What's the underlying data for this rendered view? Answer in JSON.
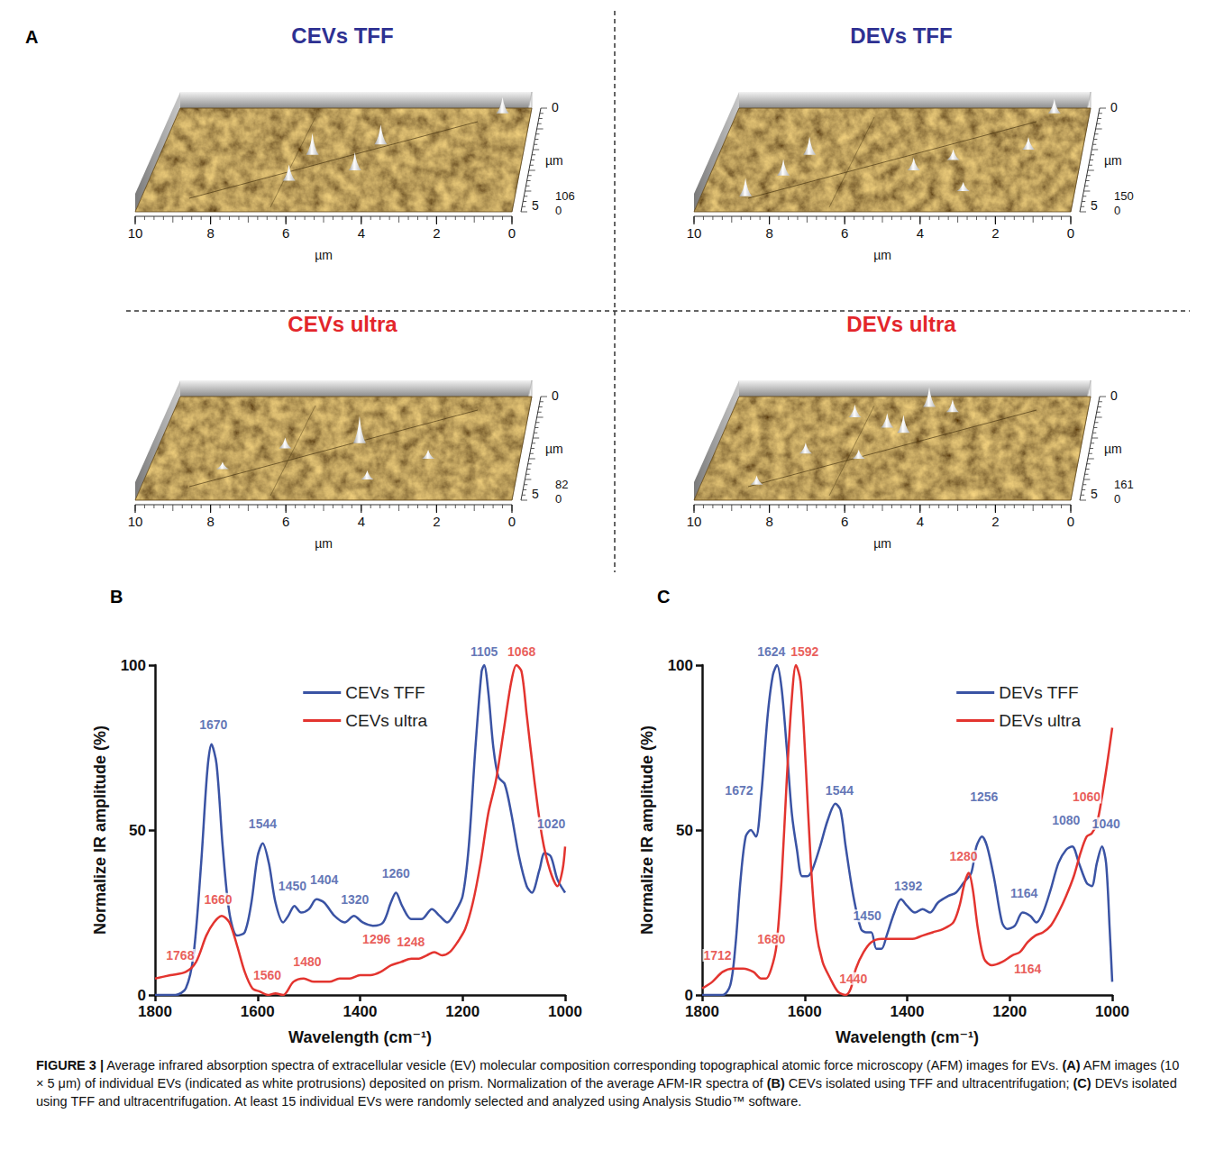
{
  "panel_A": {
    "label": "A",
    "x_ticks": [
      10,
      8,
      6,
      4,
      2,
      0
    ],
    "x_unit": "µm",
    "y_ticks": [
      0,
      5
    ],
    "y_unit": "µm",
    "images": [
      {
        "title": "CEVs TFF",
        "color": "#2e3192",
        "z_ticks": [
          106,
          0
        ]
      },
      {
        "title": "DEVs TFF",
        "color": "#2e3192",
        "z_ticks": [
          150,
          0
        ]
      },
      {
        "title": "CEVs ultra",
        "color": "#e3262b",
        "z_ticks": [
          82,
          0
        ]
      },
      {
        "title": "DEVs ultra",
        "color": "#e3262b",
        "z_ticks": [
          161,
          0
        ]
      }
    ]
  },
  "chart_data": [
    {
      "label": "B",
      "type": "line",
      "xlabel": "Wavelength (cm⁻¹)",
      "ylabel": "Normalize IR amplitude (%)",
      "xlim": [
        1800,
        1000
      ],
      "xticks": [
        1800,
        1600,
        1400,
        1200,
        1000
      ],
      "ylim": [
        0,
        100
      ],
      "yticks": [
        0,
        50,
        100
      ],
      "grid": false,
      "legend": "upper center",
      "series": [
        {
          "name": "CEVs TFF",
          "color": "#3a53a4",
          "x": [
            1800,
            1760,
            1740,
            1725,
            1710,
            1698,
            1690,
            1680,
            1668,
            1655,
            1640,
            1625,
            1612,
            1600,
            1590,
            1578,
            1565,
            1550,
            1540,
            1528,
            1515,
            1500,
            1485,
            1470,
            1450,
            1430,
            1412,
            1395,
            1375,
            1355,
            1340,
            1330,
            1318,
            1300,
            1280,
            1260,
            1245,
            1230,
            1215,
            1200,
            1188,
            1175,
            1163,
            1158,
            1150,
            1140,
            1130,
            1118,
            1105,
            1090,
            1075,
            1065,
            1050,
            1040,
            1028,
            1015,
            1000
          ],
          "values": [
            0,
            0,
            2,
            12,
            40,
            68,
            76,
            70,
            45,
            25,
            18,
            19,
            28,
            42,
            46,
            40,
            28,
            22,
            24,
            27,
            25,
            26,
            29,
            28,
            24,
            22,
            24,
            22,
            21,
            22,
            28,
            31,
            27,
            23,
            23,
            26,
            24,
            22,
            25,
            30,
            45,
            75,
            98,
            100,
            92,
            75,
            66,
            64,
            55,
            42,
            33,
            31,
            38,
            43,
            42,
            35,
            31
          ]
        },
        {
          "name": "CEVs ultra",
          "color": "#e3342f",
          "x": [
            1800,
            1770,
            1740,
            1720,
            1700,
            1685,
            1670,
            1655,
            1640,
            1625,
            1610,
            1595,
            1580,
            1565,
            1550,
            1530,
            1510,
            1490,
            1460,
            1440,
            1420,
            1400,
            1380,
            1360,
            1340,
            1320,
            1300,
            1285,
            1270,
            1255,
            1240,
            1225,
            1210,
            1195,
            1180,
            1165,
            1150,
            1135,
            1120,
            1105,
            1095,
            1085,
            1075,
            1060,
            1045,
            1030,
            1015,
            1005,
            1000
          ],
          "values": [
            5,
            6,
            7,
            10,
            18,
            22,
            24,
            22,
            15,
            7,
            2,
            1,
            0,
            0.5,
            0,
            4,
            5,
            4,
            4,
            5,
            5,
            6,
            6,
            7,
            9,
            10,
            11,
            11,
            12,
            13,
            12,
            13,
            16,
            20,
            28,
            40,
            55,
            65,
            80,
            95,
            100,
            98,
            85,
            65,
            48,
            38,
            33,
            38,
            45
          ]
        }
      ],
      "annotations": [
        {
          "text": "1670",
          "x": 1686,
          "y": 82,
          "color": "#3a53a4"
        },
        {
          "text": "1544",
          "x": 1590,
          "y": 52,
          "color": "#3a53a4"
        },
        {
          "text": "1450",
          "x": 1532,
          "y": 33,
          "color": "#3a53a4"
        },
        {
          "text": "1404",
          "x": 1470,
          "y": 35,
          "color": "#3a53a4"
        },
        {
          "text": "1320",
          "x": 1410,
          "y": 29,
          "color": "#3a53a4"
        },
        {
          "text": "1260",
          "x": 1330,
          "y": 37,
          "color": "#3a53a4"
        },
        {
          "text": "1105",
          "x": 1158,
          "y": 104,
          "color": "#3a53a4"
        },
        {
          "text": "1020",
          "x": 1027,
          "y": 52,
          "color": "#3a53a4"
        },
        {
          "text": "1068",
          "x": 1085,
          "y": 104,
          "color": "#e3342f"
        },
        {
          "text": "1660",
          "x": 1677,
          "y": 29,
          "color": "#e3342f"
        },
        {
          "text": "1768",
          "x": 1751,
          "y": 12,
          "color": "#e3342f"
        },
        {
          "text": "1560",
          "x": 1581,
          "y": 6,
          "color": "#e3342f"
        },
        {
          "text": "1480",
          "x": 1503,
          "y": 10,
          "color": "#e3342f"
        },
        {
          "text": "1296",
          "x": 1368,
          "y": 17,
          "color": "#e3342f"
        },
        {
          "text": "1248",
          "x": 1301,
          "y": 16,
          "color": "#e3342f"
        }
      ]
    },
    {
      "label": "C",
      "type": "line",
      "xlabel": "Wavelength (cm⁻¹)",
      "ylabel": "Normalize IR amplitude (%)",
      "xlim": [
        1800,
        1000
      ],
      "xticks": [
        1800,
        1600,
        1400,
        1200,
        1000
      ],
      "ylim": [
        0,
        100
      ],
      "yticks": [
        0,
        50,
        100
      ],
      "grid": false,
      "legend": "upper right",
      "series": [
        {
          "name": "DEVs TFF",
          "color": "#3a53a4",
          "x": [
            1800,
            1760,
            1745,
            1735,
            1725,
            1715,
            1705,
            1695,
            1685,
            1672,
            1662,
            1654,
            1645,
            1635,
            1625,
            1615,
            1605,
            1595,
            1585,
            1570,
            1555,
            1540,
            1530,
            1520,
            1505,
            1490,
            1480,
            1470,
            1460,
            1450,
            1440,
            1425,
            1412,
            1400,
            1385,
            1370,
            1355,
            1340,
            1320,
            1305,
            1290,
            1275,
            1265,
            1254,
            1244,
            1230,
            1215,
            1205,
            1190,
            1175,
            1160,
            1148,
            1135,
            1120,
            1105,
            1090,
            1078,
            1065,
            1050,
            1040,
            1030,
            1020,
            1012,
            1005,
            1000
          ],
          "values": [
            0,
            0,
            3,
            15,
            35,
            48,
            50,
            48,
            60,
            85,
            97,
            100,
            93,
            75,
            55,
            44,
            36,
            36,
            38,
            45,
            53,
            58,
            56,
            45,
            30,
            20,
            19,
            19,
            14,
            14,
            18,
            25,
            29,
            27,
            25,
            26,
            25,
            28,
            30,
            31,
            34,
            37,
            45,
            48,
            45,
            35,
            22,
            20,
            21,
            25,
            24,
            22,
            25,
            32,
            40,
            44,
            45,
            40,
            34,
            33,
            40,
            45,
            40,
            20,
            4
          ]
        },
        {
          "name": "DEVs ultra",
          "color": "#e3342f",
          "x": [
            1800,
            1780,
            1760,
            1740,
            1720,
            1700,
            1685,
            1675,
            1665,
            1655,
            1645,
            1635,
            1625,
            1617,
            1608,
            1598,
            1588,
            1578,
            1565,
            1550,
            1535,
            1520,
            1510,
            1500,
            1485,
            1470,
            1450,
            1430,
            1410,
            1390,
            1370,
            1350,
            1330,
            1310,
            1298,
            1288,
            1280,
            1272,
            1262,
            1250,
            1235,
            1215,
            1195,
            1180,
            1165,
            1150,
            1135,
            1120,
            1105,
            1090,
            1075,
            1062,
            1050,
            1040,
            1030,
            1020,
            1010,
            1000
          ],
          "values": [
            2,
            4,
            7,
            8,
            8,
            7,
            5,
            5,
            8,
            15,
            35,
            65,
            90,
            100,
            95,
            70,
            40,
            20,
            10,
            5,
            1,
            0,
            2,
            8,
            13,
            16,
            17,
            17,
            17,
            17,
            18,
            19,
            20,
            22,
            27,
            34,
            37,
            32,
            20,
            11,
            9,
            10,
            12,
            13,
            16,
            18,
            19,
            21,
            25,
            30,
            36,
            43,
            48,
            49,
            52,
            60,
            70,
            81
          ]
        }
      ],
      "annotations": [
        {
          "text": "1672",
          "x": 1728,
          "y": 62,
          "color": "#3a53a4"
        },
        {
          "text": "1624",
          "x": 1665,
          "y": 104,
          "color": "#3a53a4"
        },
        {
          "text": "1544",
          "x": 1532,
          "y": 62,
          "color": "#3a53a4"
        },
        {
          "text": "1450",
          "x": 1478,
          "y": 24,
          "color": "#3a53a4"
        },
        {
          "text": "1392",
          "x": 1398,
          "y": 33,
          "color": "#3a53a4"
        },
        {
          "text": "1256",
          "x": 1250,
          "y": 60,
          "color": "#3a53a4"
        },
        {
          "text": "1164",
          "x": 1172,
          "y": 31,
          "color": "#3a53a4"
        },
        {
          "text": "1080",
          "x": 1090,
          "y": 53,
          "color": "#3a53a4"
        },
        {
          "text": "1040",
          "x": 1012,
          "y": 52,
          "color": "#3a53a4"
        },
        {
          "text": "1592",
          "x": 1600,
          "y": 104,
          "color": "#e3342f"
        },
        {
          "text": "1712",
          "x": 1770,
          "y": 12,
          "color": "#e3342f"
        },
        {
          "text": "1680",
          "x": 1665,
          "y": 17,
          "color": "#e3342f"
        },
        {
          "text": "1440",
          "x": 1505,
          "y": 5,
          "color": "#e3342f"
        },
        {
          "text": "1280",
          "x": 1290,
          "y": 42,
          "color": "#e3342f"
        },
        {
          "text": "1164",
          "x": 1165,
          "y": 8,
          "color": "#e3342f"
        },
        {
          "text": "1060",
          "x": 1050,
          "y": 60,
          "color": "#e3342f"
        }
      ]
    }
  ],
  "caption": [
    {
      "text": "FIGURE 3 |",
      "bold": true
    },
    {
      "text": " Average infrared absorption spectra of extracellular vesicle (EV) molecular composition corresponding topographical atomic force microscopy (AFM) images for EVs. ",
      "bold": false
    },
    {
      "text": "(A)",
      "bold": true
    },
    {
      "text": " AFM images (10 × 5 μm) of individual EVs (indicated as white protrusions) deposited on prism. Normalization of the average AFM-IR spectra of ",
      "bold": false
    },
    {
      "text": "(B)",
      "bold": true
    },
    {
      "text": " CEVs isolated using TFF and ultracentrifugation; ",
      "bold": false
    },
    {
      "text": "(C)",
      "bold": true
    },
    {
      "text": " DEVs isolated using TFF and ultracentrifugation. At least 15 individual EVs were randomly selected and analyzed using Analysis Studio™ software.",
      "bold": false
    }
  ]
}
